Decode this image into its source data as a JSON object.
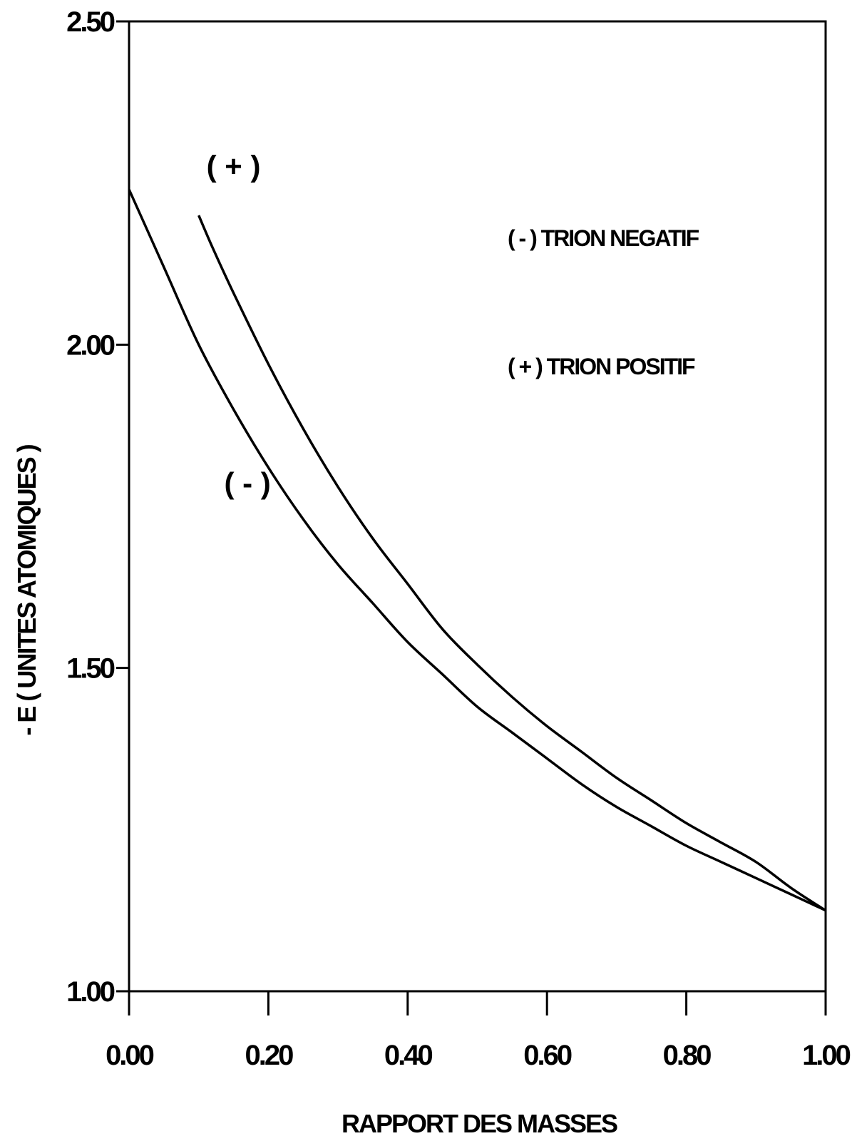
{
  "chart_data": {
    "type": "line",
    "xlabel": "RAPPORT DES MASSES",
    "ylabel": "- E ( UNITES ATOMIQUES )",
    "xlim": [
      0,
      1
    ],
    "ylim": [
      1,
      2.5
    ],
    "x_ticks": [
      "0.00",
      "0.20",
      "0.40",
      "0.60",
      "0.80",
      "1.00"
    ],
    "y_ticks": [
      "1.00",
      "1.50",
      "2.00",
      "2.50"
    ],
    "grid": false,
    "series": [
      {
        "name": "(-)",
        "x": [
          0.0,
          0.05,
          0.1,
          0.15,
          0.2,
          0.25,
          0.3,
          0.35,
          0.4,
          0.45,
          0.5,
          0.55,
          0.6,
          0.65,
          0.7,
          0.75,
          0.8,
          0.85,
          0.9,
          0.95,
          1.0
        ],
        "values": [
          2.24,
          2.12,
          2.0,
          1.9,
          1.81,
          1.73,
          1.66,
          1.6,
          1.54,
          1.49,
          1.44,
          1.4,
          1.36,
          1.32,
          1.285,
          1.255,
          1.225,
          1.2,
          1.175,
          1.15,
          1.125
        ]
      },
      {
        "name": "(+)",
        "x": [
          0.1,
          0.12,
          0.15,
          0.2,
          0.25,
          0.3,
          0.35,
          0.4,
          0.45,
          0.5,
          0.55,
          0.6,
          0.65,
          0.7,
          0.75,
          0.8,
          0.85,
          0.9,
          0.95,
          1.0
        ],
        "values": [
          2.2,
          2.15,
          2.08,
          1.97,
          1.87,
          1.78,
          1.7,
          1.63,
          1.56,
          1.505,
          1.455,
          1.41,
          1.37,
          1.33,
          1.295,
          1.26,
          1.23,
          1.2,
          1.16,
          1.125
        ]
      }
    ],
    "annotations": [
      {
        "text": "( + )",
        "x": 0.15,
        "y": 2.26
      },
      {
        "text": "( - )",
        "x": 0.17,
        "y": 1.77
      }
    ],
    "legend": {
      "placement": "top-right",
      "entries": [
        "( - ) TRION NEGATIF",
        "( + ) TRION POSITIF"
      ]
    }
  }
}
